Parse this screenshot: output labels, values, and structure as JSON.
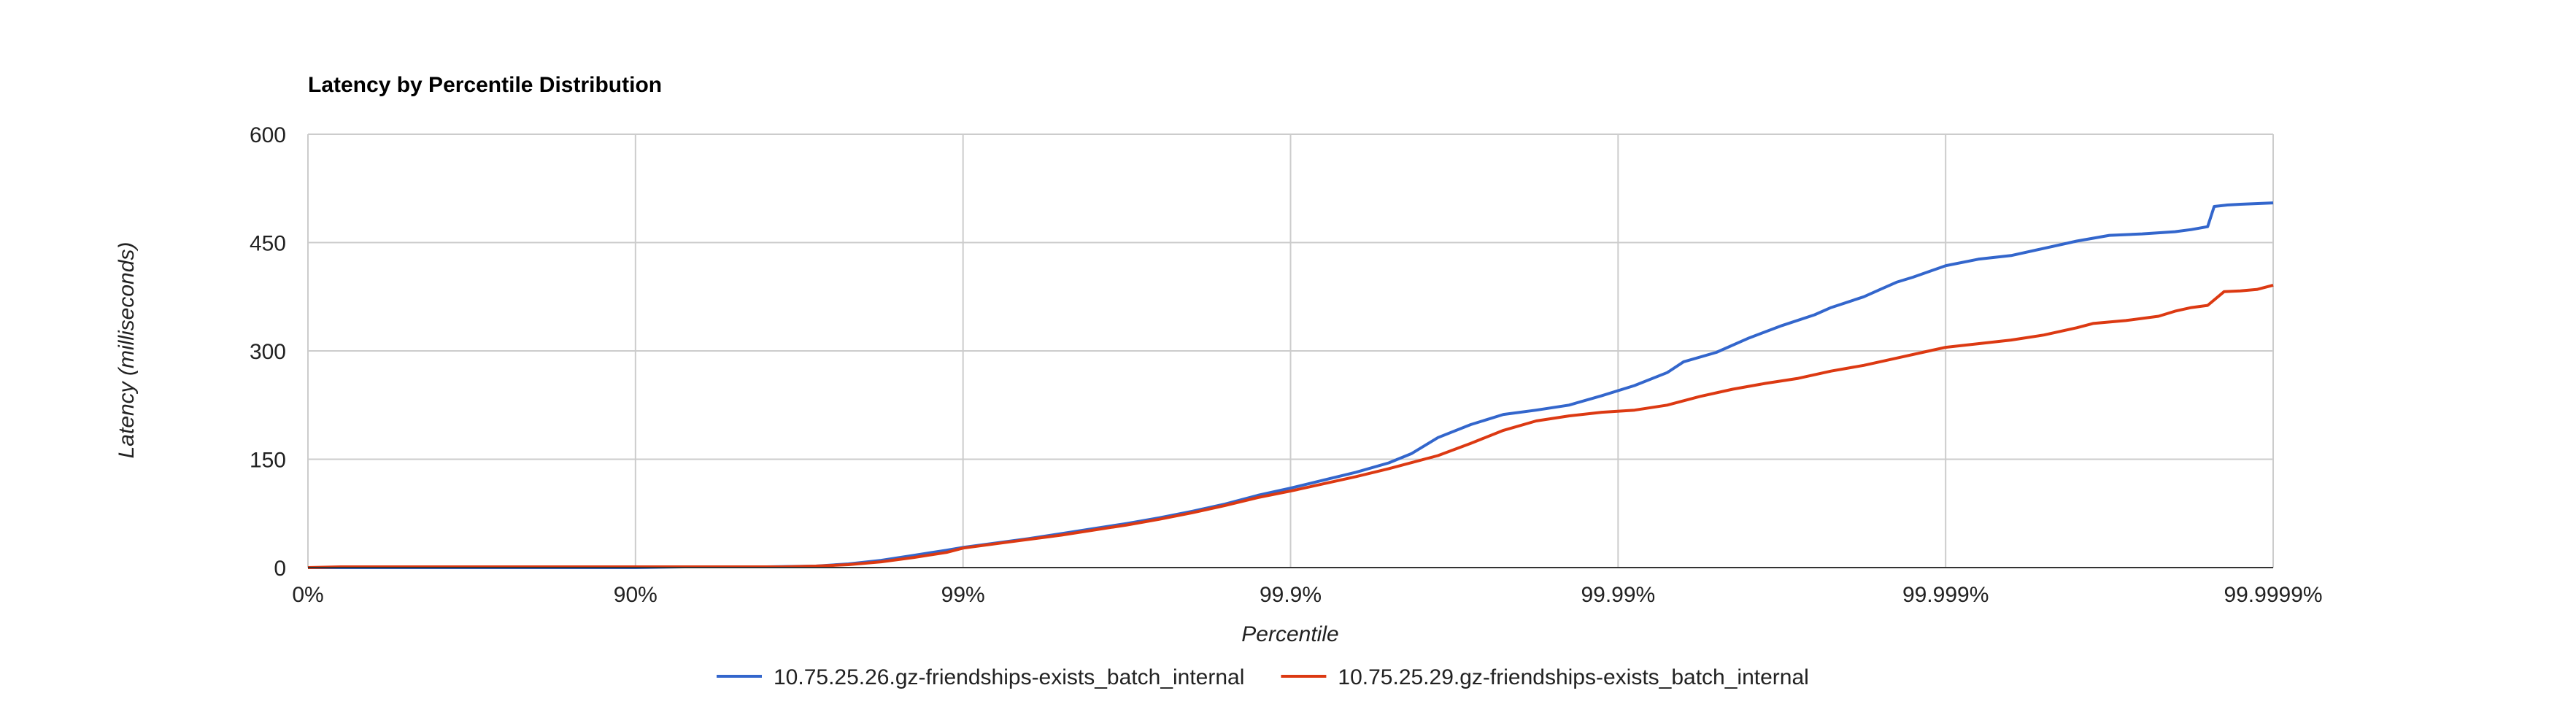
{
  "chart_data": {
    "type": "line",
    "title": "Latency by Percentile Distribution",
    "xlabel": "Percentile",
    "ylabel": "Latency (milliseconds)",
    "x_scale": "log-of-one-minus-percentile",
    "x_ticks": [
      "0%",
      "90%",
      "99%",
      "99.9%",
      "99.99%",
      "99.999%",
      "99.9999%"
    ],
    "y_ticks": [
      0,
      150,
      300,
      450,
      600
    ],
    "ylim": [
      0,
      600
    ],
    "grid": true,
    "legend_position": "bottom",
    "series": [
      {
        "name": "10.75.25.26.gz-friendships-exists_batch_internal",
        "color": "#3366cc",
        "points": [
          [
            0,
            0
          ],
          [
            0.1,
            0
          ],
          [
            0.5,
            0
          ],
          [
            1.0,
            0
          ],
          [
            1.15,
            1
          ],
          [
            1.4,
            1
          ],
          [
            1.55,
            2
          ],
          [
            1.65,
            5
          ],
          [
            1.75,
            10
          ],
          [
            1.85,
            17
          ],
          [
            1.95,
            24
          ],
          [
            2.0,
            28
          ],
          [
            2.1,
            34
          ],
          [
            2.2,
            40
          ],
          [
            2.3,
            47
          ],
          [
            2.4,
            54
          ],
          [
            2.5,
            61
          ],
          [
            2.6,
            69
          ],
          [
            2.7,
            78
          ],
          [
            2.8,
            88
          ],
          [
            2.9,
            100
          ],
          [
            3.0,
            110
          ],
          [
            3.1,
            121
          ],
          [
            3.2,
            132
          ],
          [
            3.3,
            145
          ],
          [
            3.37,
            158
          ],
          [
            3.45,
            180
          ],
          [
            3.55,
            198
          ],
          [
            3.65,
            212
          ],
          [
            3.75,
            218
          ],
          [
            3.85,
            225
          ],
          [
            3.95,
            238
          ],
          [
            4.05,
            252
          ],
          [
            4.15,
            270
          ],
          [
            4.2,
            285
          ],
          [
            4.3,
            298
          ],
          [
            4.4,
            318
          ],
          [
            4.5,
            335
          ],
          [
            4.6,
            350
          ],
          [
            4.65,
            360
          ],
          [
            4.75,
            375
          ],
          [
            4.8,
            385
          ],
          [
            4.85,
            395
          ],
          [
            4.9,
            402
          ],
          [
            4.95,
            410
          ],
          [
            5.0,
            418
          ],
          [
            5.1,
            427
          ],
          [
            5.2,
            432
          ],
          [
            5.3,
            442
          ],
          [
            5.4,
            452
          ],
          [
            5.5,
            460
          ],
          [
            5.6,
            462
          ],
          [
            5.7,
            465
          ],
          [
            5.75,
            468
          ],
          [
            5.8,
            472
          ],
          [
            5.82,
            500
          ],
          [
            5.86,
            502
          ],
          [
            5.9,
            503
          ],
          [
            6.0,
            505
          ]
        ]
      },
      {
        "name": "10.75.25.29.gz-friendships-exists_batch_internal",
        "color": "#dc3912",
        "points": [
          [
            0,
            0
          ],
          [
            0.1,
            1
          ],
          [
            0.5,
            1
          ],
          [
            1.0,
            1
          ],
          [
            1.2,
            1
          ],
          [
            1.45,
            1
          ],
          [
            1.55,
            2
          ],
          [
            1.65,
            4
          ],
          [
            1.75,
            8
          ],
          [
            1.85,
            14
          ],
          [
            1.95,
            21
          ],
          [
            2.0,
            27
          ],
          [
            2.1,
            33
          ],
          [
            2.2,
            39
          ],
          [
            2.3,
            45
          ],
          [
            2.4,
            52
          ],
          [
            2.5,
            59
          ],
          [
            2.6,
            67
          ],
          [
            2.7,
            76
          ],
          [
            2.8,
            86
          ],
          [
            2.9,
            97
          ],
          [
            3.0,
            106
          ],
          [
            3.1,
            116
          ],
          [
            3.2,
            126
          ],
          [
            3.3,
            137
          ],
          [
            3.45,
            155
          ],
          [
            3.55,
            172
          ],
          [
            3.65,
            190
          ],
          [
            3.75,
            203
          ],
          [
            3.85,
            210
          ],
          [
            3.95,
            215
          ],
          [
            4.05,
            218
          ],
          [
            4.15,
            225
          ],
          [
            4.25,
            237
          ],
          [
            4.35,
            247
          ],
          [
            4.45,
            255
          ],
          [
            4.55,
            262
          ],
          [
            4.65,
            272
          ],
          [
            4.75,
            280
          ],
          [
            4.85,
            290
          ],
          [
            4.95,
            300
          ],
          [
            5.0,
            305
          ],
          [
            5.1,
            310
          ],
          [
            5.2,
            315
          ],
          [
            5.3,
            322
          ],
          [
            5.4,
            332
          ],
          [
            5.45,
            338
          ],
          [
            5.55,
            342
          ],
          [
            5.65,
            348
          ],
          [
            5.7,
            355
          ],
          [
            5.75,
            360
          ],
          [
            5.8,
            363
          ],
          [
            5.85,
            382
          ],
          [
            5.9,
            383
          ],
          [
            5.95,
            385
          ],
          [
            6.0,
            391
          ]
        ]
      }
    ]
  }
}
